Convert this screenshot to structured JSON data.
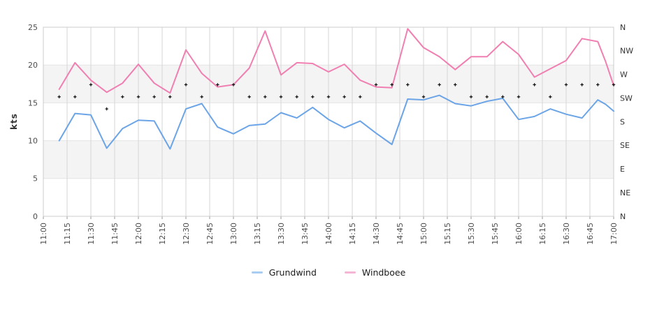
{
  "chart_data": {
    "type": "line",
    "title": "",
    "x_axis": {
      "tick_labels": [
        "11:00",
        "11:15",
        "11:30",
        "11:45",
        "12:00",
        "12:15",
        "12:30",
        "12:45",
        "13:00",
        "13:15",
        "13:30",
        "13:45",
        "14:00",
        "14:15",
        "14:30",
        "14:45",
        "15:00",
        "15:15",
        "15:30",
        "15:45",
        "16:00",
        "16:15",
        "16:30",
        "16:45",
        "17:00"
      ],
      "tick_interval_min": 15,
      "label_rotation_deg": -90
    },
    "y_axis_left": {
      "label": "kts",
      "ticks": [
        0,
        5,
        10,
        15,
        20,
        25
      ],
      "range": [
        0,
        25
      ]
    },
    "y_axis_right": {
      "labels": [
        "N",
        "NW",
        "W",
        "SW",
        "S",
        "SE",
        "E",
        "NE",
        "N"
      ],
      "scale_note": "wind direction axis, N=25(top) to N=0(bottom), 8 equal sectors"
    },
    "bands_kts": [
      [
        15,
        20
      ],
      [
        5,
        10
      ]
    ],
    "series": [
      {
        "name": "Grundwind",
        "color": "#6ba4e7",
        "points": [
          [
            "11:10",
            10.0
          ],
          [
            "11:20",
            13.6
          ],
          [
            "11:30",
            13.4
          ],
          [
            "11:40",
            9.0
          ],
          [
            "11:50",
            11.6
          ],
          [
            "12:00",
            12.7
          ],
          [
            "12:10",
            12.6
          ],
          [
            "12:20",
            8.9
          ],
          [
            "12:30",
            14.2
          ],
          [
            "12:40",
            14.9
          ],
          [
            "12:50",
            11.8
          ],
          [
            "13:00",
            10.9
          ],
          [
            "13:10",
            12.0
          ],
          [
            "13:20",
            12.2
          ],
          [
            "13:30",
            13.7
          ],
          [
            "13:40",
            13.0
          ],
          [
            "13:50",
            14.4
          ],
          [
            "14:00",
            12.8
          ],
          [
            "14:10",
            11.7
          ],
          [
            "14:20",
            12.6
          ],
          [
            "14:30",
            11.0
          ],
          [
            "14:40",
            9.5
          ],
          [
            "14:50",
            15.5
          ],
          [
            "15:00",
            15.4
          ],
          [
            "15:10",
            16.0
          ],
          [
            "15:20",
            14.9
          ],
          [
            "15:30",
            14.6
          ],
          [
            "15:40",
            15.2
          ],
          [
            "15:50",
            15.6
          ],
          [
            "16:00",
            12.8
          ],
          [
            "16:10",
            13.2
          ],
          [
            "16:20",
            14.2
          ],
          [
            "16:30",
            13.5
          ],
          [
            "16:40",
            13.0
          ],
          [
            "16:50",
            15.4
          ],
          [
            "16:55",
            14.8
          ],
          [
            "17:00",
            13.9
          ]
        ]
      },
      {
        "name": "Windboee",
        "color": "#f07fb2",
        "points": [
          [
            "11:10",
            16.8
          ],
          [
            "11:20",
            20.3
          ],
          [
            "11:30",
            18.0
          ],
          [
            "11:40",
            16.4
          ],
          [
            "11:50",
            17.6
          ],
          [
            "12:00",
            20.1
          ],
          [
            "12:10",
            17.6
          ],
          [
            "12:20",
            16.3
          ],
          [
            "12:30",
            22.0
          ],
          [
            "12:40",
            18.9
          ],
          [
            "12:50",
            17.1
          ],
          [
            "13:00",
            17.4
          ],
          [
            "13:10",
            19.6
          ],
          [
            "13:20",
            24.5
          ],
          [
            "13:30",
            18.7
          ],
          [
            "13:40",
            20.3
          ],
          [
            "13:50",
            20.2
          ],
          [
            "14:00",
            19.1
          ],
          [
            "14:10",
            20.1
          ],
          [
            "14:20",
            18.0
          ],
          [
            "14:30",
            17.1
          ],
          [
            "14:40",
            17.0
          ],
          [
            "14:50",
            24.8
          ],
          [
            "15:00",
            22.3
          ],
          [
            "15:10",
            21.1
          ],
          [
            "15:20",
            19.4
          ],
          [
            "15:30",
            21.1
          ],
          [
            "15:40",
            21.1
          ],
          [
            "15:50",
            23.1
          ],
          [
            "16:00",
            21.4
          ],
          [
            "16:10",
            18.4
          ],
          [
            "16:20",
            19.5
          ],
          [
            "16:30",
            20.6
          ],
          [
            "16:40",
            23.5
          ],
          [
            "16:50",
            23.1
          ],
          [
            "16:55",
            20.4
          ],
          [
            "17:00",
            17.3
          ]
        ]
      }
    ],
    "direction_markers": {
      "shape": "plus",
      "color": "#111111",
      "value_scale": "same 0-25 axis; 15.8=SW~227deg, 17.4=WSW~251deg, 14.2=SSW~205deg",
      "points": [
        [
          "11:10",
          15.8
        ],
        [
          "11:20",
          15.8
        ],
        [
          "11:30",
          17.4
        ],
        [
          "11:40",
          14.2
        ],
        [
          "11:50",
          15.8
        ],
        [
          "12:00",
          15.8
        ],
        [
          "12:10",
          15.8
        ],
        [
          "12:20",
          15.8
        ],
        [
          "12:30",
          17.4
        ],
        [
          "12:40",
          15.8
        ],
        [
          "12:50",
          17.4
        ],
        [
          "13:00",
          17.4
        ],
        [
          "13:10",
          15.8
        ],
        [
          "13:20",
          15.8
        ],
        [
          "13:30",
          15.8
        ],
        [
          "13:40",
          15.8
        ],
        [
          "13:50",
          15.8
        ],
        [
          "14:00",
          15.8
        ],
        [
          "14:10",
          15.8
        ],
        [
          "14:20",
          15.8
        ],
        [
          "14:30",
          17.4
        ],
        [
          "14:40",
          17.4
        ],
        [
          "14:50",
          17.4
        ],
        [
          "15:00",
          15.8
        ],
        [
          "15:10",
          17.4
        ],
        [
          "15:20",
          17.4
        ],
        [
          "15:30",
          15.8
        ],
        [
          "15:40",
          15.8
        ],
        [
          "15:50",
          15.8
        ],
        [
          "16:00",
          15.8
        ],
        [
          "16:10",
          17.4
        ],
        [
          "16:20",
          15.8
        ],
        [
          "16:30",
          17.4
        ],
        [
          "16:40",
          17.4
        ],
        [
          "16:50",
          17.4
        ],
        [
          "17:00",
          17.4
        ]
      ]
    },
    "legend": {
      "position": "bottom-center",
      "items": [
        {
          "label": "Grundwind",
          "color": "#a9cdf1"
        },
        {
          "label": "Windboee",
          "color": "#f5b5d5"
        }
      ]
    },
    "colors": {
      "band": "#f4f4f4",
      "grid_v": "#d6d6d6",
      "grid_h": "#e4e4e4",
      "border": "#cccccc",
      "tick": "#999999"
    }
  }
}
